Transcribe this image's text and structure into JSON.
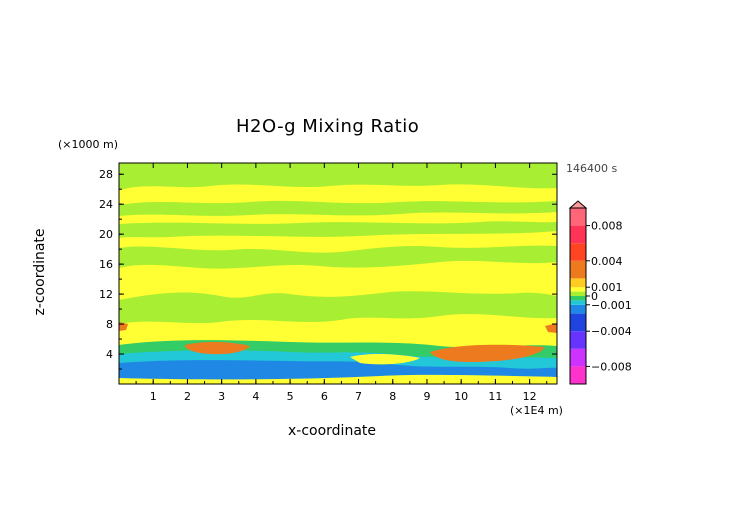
{
  "chart_data": {
    "type": "heatmap",
    "title": "H2O-g Mixing Ratio",
    "xlabel": "x-coordinate",
    "ylabel": "z-coordinate",
    "x_unit": "(×1E4 m)",
    "y_unit": "(×1000 m)",
    "time_label": "146400 s",
    "xlim": [
      0,
      12.8
    ],
    "ylim": [
      0,
      29.5
    ],
    "x_ticks": [
      "1",
      "2",
      "3",
      "4",
      "5",
      "6",
      "7",
      "8",
      "9",
      "10",
      "11",
      "12"
    ],
    "y_ticks": [
      "4",
      "8",
      "12",
      "16",
      "20",
      "24",
      "28"
    ],
    "colorbar": {
      "tick_labels": [
        "0.008",
        "0.004",
        "0.001",
        "0",
        "−0.001",
        "−0.004",
        "−0.008"
      ],
      "tick_values": [
        0.008,
        0.004,
        0.001,
        0,
        -0.001,
        -0.004,
        -0.008
      ],
      "range": [
        -0.01,
        0.01
      ]
    },
    "colors": {
      "neutral_yellow": "#ffff33",
      "light_green": "#a8ee33",
      "green": "#33cc66",
      "cyan": "#22c8d8",
      "blue": "#1f88e5",
      "orange": "#ee7a1f"
    }
  }
}
